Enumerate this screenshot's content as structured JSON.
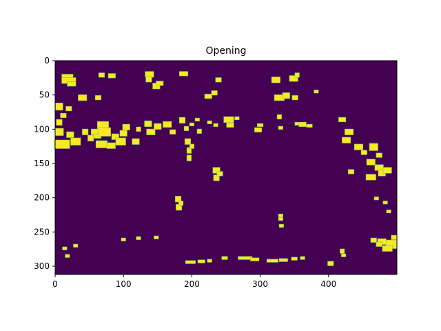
{
  "chart_data": {
    "type": "heatmap",
    "title": "Opening",
    "xlabel": "",
    "ylabel": "",
    "image_shape": [
      312,
      500
    ],
    "xlim": [
      0,
      500
    ],
    "ylim": [
      312,
      0
    ],
    "xticks": [
      0,
      100,
      200,
      300,
      400
    ],
    "yticks": [
      0,
      50,
      100,
      150,
      200,
      250,
      300
    ],
    "colormap": "viridis",
    "background_color": "#440154",
    "foreground_color": "#fde725",
    "edge_color": "#5ec962",
    "grid": false,
    "legend": "none",
    "blobs": [
      [
        18,
        8,
        24,
        4
      ],
      [
        20,
        10,
        29,
        4
      ],
      [
        24,
        6,
        34,
        3
      ],
      [
        68,
        4,
        21,
        3
      ],
      [
        83,
        5,
        22,
        3
      ],
      [
        138,
        6,
        20,
        4
      ],
      [
        137,
        4,
        27,
        4
      ],
      [
        148,
        5,
        37,
        4
      ],
      [
        153,
        5,
        33,
        3
      ],
      [
        188,
        6,
        19,
        3
      ],
      [
        239,
        4,
        28,
        3
      ],
      [
        323,
        6,
        28,
        4
      ],
      [
        349,
        6,
        26,
        4
      ],
      [
        354,
        3,
        21,
        3
      ],
      [
        40,
        6,
        54,
        4
      ],
      [
        63,
        4,
        54,
        3
      ],
      [
        224,
        5,
        52,
        3
      ],
      [
        233,
        4,
        47,
        3
      ],
      [
        328,
        7,
        54,
        4
      ],
      [
        338,
        5,
        51,
        4
      ],
      [
        351,
        4,
        54,
        3
      ],
      [
        382,
        3,
        45,
        2
      ],
      [
        6,
        5,
        67,
        5
      ],
      [
        12,
        4,
        80,
        3
      ],
      [
        20,
        4,
        70,
        3
      ],
      [
        6,
        4,
        90,
        4
      ],
      [
        6,
        6,
        104,
        5
      ],
      [
        10,
        11,
        122,
        6
      ],
      [
        22,
        5,
        108,
        4
      ],
      [
        30,
        7,
        118,
        5
      ],
      [
        44,
        4,
        104,
        4
      ],
      [
        52,
        4,
        113,
        4
      ],
      [
        58,
        5,
        104,
        4
      ],
      [
        62,
        5,
        110,
        3
      ],
      [
        70,
        8,
        94,
        5
      ],
      [
        72,
        9,
        104,
        6
      ],
      [
        68,
        8,
        122,
        5
      ],
      [
        82,
        6,
        124,
        4
      ],
      [
        88,
        5,
        111,
        4
      ],
      [
        96,
        7,
        118,
        5
      ],
      [
        100,
        5,
        106,
        4
      ],
      [
        104,
        5,
        97,
        4
      ],
      [
        118,
        5,
        118,
        4
      ],
      [
        122,
        3,
        100,
        3
      ],
      [
        136,
        5,
        92,
        4
      ],
      [
        140,
        6,
        104,
        4
      ],
      [
        150,
        5,
        96,
        4
      ],
      [
        164,
        6,
        93,
        4
      ],
      [
        172,
        4,
        104,
        3
      ],
      [
        186,
        4,
        87,
        4
      ],
      [
        192,
        3,
        99,
        3
      ],
      [
        200,
        3,
        93,
        2
      ],
      [
        208,
        3,
        86,
        2
      ],
      [
        211,
        3,
        103,
        3
      ],
      [
        226,
        3,
        90,
        2
      ],
      [
        235,
        3,
        94,
        2
      ],
      [
        194,
        4,
        118,
        4
      ],
      [
        196,
        3,
        131,
        4
      ],
      [
        196,
        3,
        142,
        4
      ],
      [
        200,
        3,
        125,
        3
      ],
      [
        254,
        7,
        86,
        4
      ],
      [
        256,
        5,
        94,
        3
      ],
      [
        266,
        3,
        84,
        2
      ],
      [
        297,
        5,
        101,
        3
      ],
      [
        300,
        4,
        94,
        2
      ],
      [
        328,
        3,
        82,
        3
      ],
      [
        330,
        3,
        98,
        2
      ],
      [
        354,
        3,
        92,
        2
      ],
      [
        362,
        5,
        93,
        3
      ],
      [
        372,
        4,
        95,
        2
      ],
      [
        420,
        5,
        86,
        3
      ],
      [
        430,
        6,
        104,
        4
      ],
      [
        426,
        6,
        116,
        4
      ],
      [
        444,
        6,
        126,
        4
      ],
      [
        452,
        4,
        134,
        3
      ],
      [
        466,
        6,
        126,
        5
      ],
      [
        462,
        6,
        148,
        4
      ],
      [
        474,
        6,
        156,
        4
      ],
      [
        478,
        5,
        164,
        4
      ],
      [
        486,
        6,
        160,
        4
      ],
      [
        462,
        7,
        170,
        4
      ],
      [
        474,
        4,
        138,
        3
      ],
      [
        433,
        4,
        162,
        3
      ],
      [
        236,
        5,
        160,
        4
      ],
      [
        236,
        4,
        171,
        4
      ],
      [
        241,
        4,
        165,
        3
      ],
      [
        180,
        4,
        202,
        4
      ],
      [
        181,
        4,
        214,
        4
      ],
      [
        184,
        3,
        208,
        3
      ],
      [
        492,
        8,
        268,
        6
      ],
      [
        486,
        7,
        274,
        4
      ],
      [
        478,
        6,
        264,
        4
      ],
      [
        466,
        4,
        262,
        3
      ],
      [
        474,
        4,
        268,
        3
      ],
      [
        496,
        4,
        258,
        3
      ],
      [
        420,
        3,
        278,
        3
      ],
      [
        422,
        3,
        284,
        2
      ],
      [
        470,
        3,
        201,
        2
      ],
      [
        483,
        3,
        207,
        2
      ],
      [
        488,
        3,
        220,
        2
      ],
      [
        198,
        7,
        294,
        2
      ],
      [
        214,
        5,
        293,
        2
      ],
      [
        226,
        3,
        292,
        2
      ],
      [
        248,
        4,
        288,
        2
      ],
      [
        278,
        10,
        288,
        2
      ],
      [
        292,
        6,
        290,
        2
      ],
      [
        318,
        8,
        292,
        2
      ],
      [
        334,
        6,
        291,
        2
      ],
      [
        350,
        4,
        289,
        2
      ],
      [
        362,
        3,
        288,
        2
      ],
      [
        403,
        4,
        296,
        3
      ],
      [
        14,
        3,
        274,
        2
      ],
      [
        18,
        3,
        285,
        2
      ],
      [
        30,
        3,
        270,
        2
      ],
      [
        100,
        3,
        261,
        2
      ],
      [
        122,
        3,
        259,
        2
      ],
      [
        148,
        3,
        258,
        2
      ],
      [
        330,
        3,
        226,
        2
      ],
      [
        331,
        3,
        241,
        2
      ],
      [
        330,
        3,
        231,
        2
      ]
    ]
  }
}
